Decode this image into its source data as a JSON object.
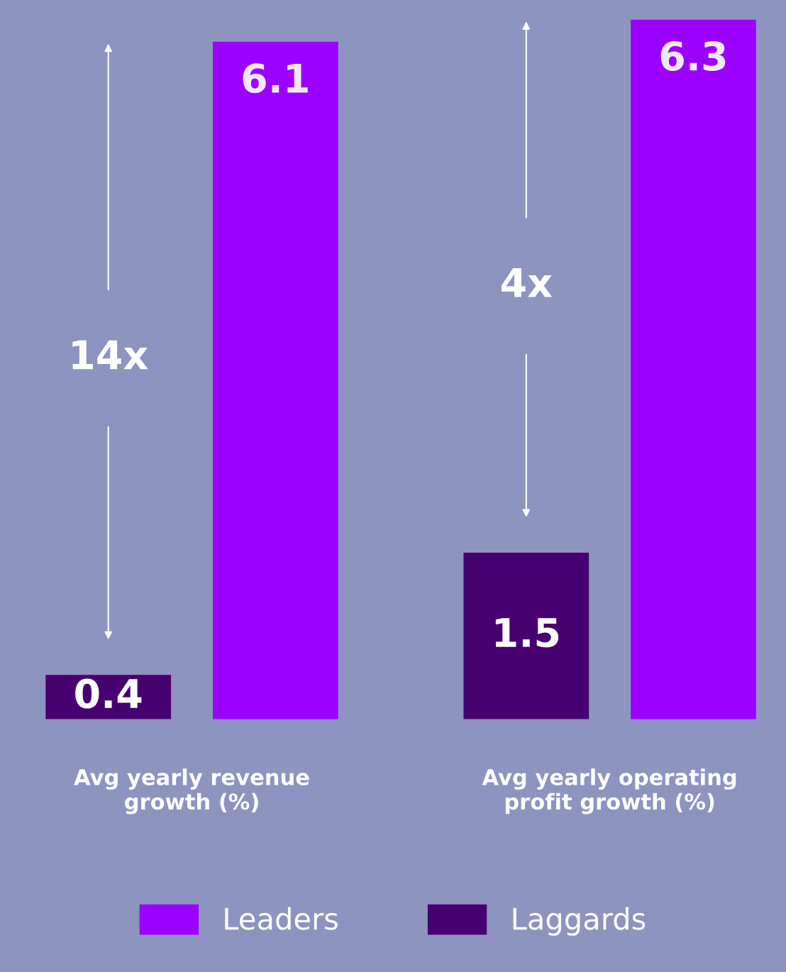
{
  "chart_data": {
    "type": "bar",
    "categories": [
      "Avg yearly revenue\ngrowth (%)",
      "Avg yearly operating\nprofit growth (%)"
    ],
    "series": [
      {
        "name": "Leaders",
        "color": "#9b00ff",
        "values": [
          6.1,
          6.3
        ]
      },
      {
        "name": "Laggards",
        "color": "#460070",
        "values": [
          0.4,
          1.5
        ]
      }
    ],
    "annotations": [
      "14x",
      "4x"
    ],
    "data_labels": true,
    "legend": "bottom",
    "grid": false
  }
}
